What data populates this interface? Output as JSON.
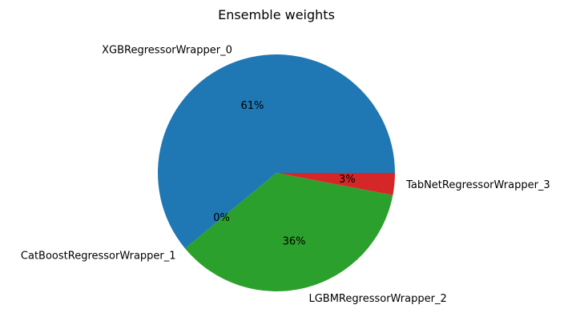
{
  "chart_data": {
    "type": "pie",
    "title": "Ensemble weights",
    "slices": [
      {
        "label": "XGBRegressorWrapper_0",
        "value": 0.61,
        "pct_label": "61%",
        "color": "#1f77b4"
      },
      {
        "label": "CatBoostRegressorWrapper_1",
        "value": 0.0,
        "pct_label": "0%",
        "color": "#ff7f0e"
      },
      {
        "label": "LGBMRegressorWrapper_2",
        "value": 0.36,
        "pct_label": "36%",
        "color": "#2ca02c"
      },
      {
        "label": "TabNetRegressorWrapper_3",
        "value": 0.03,
        "pct_label": "3%",
        "color": "#d62728"
      }
    ],
    "start_angle_deg": 0,
    "direction": "counterclockwise"
  }
}
